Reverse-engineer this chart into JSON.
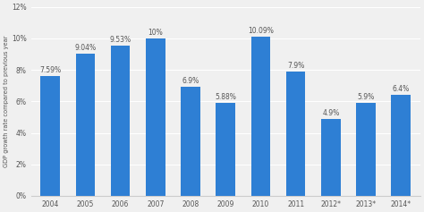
{
  "categories": [
    "2004",
    "2005",
    "2006",
    "2007",
    "2008",
    "2009",
    "2010",
    "2011",
    "2012*",
    "2013*",
    "2014*"
  ],
  "values": [
    7.59,
    9.04,
    9.53,
    10.0,
    6.9,
    5.88,
    10.09,
    7.9,
    4.9,
    5.9,
    6.4
  ],
  "labels": [
    "7.59%",
    "9.04%",
    "9.53%",
    "10%",
    "6.9%",
    "5.88%",
    "10.09%",
    "7.9%",
    "4.9%",
    "5.9%",
    "6.4%"
  ],
  "bar_color": "#2e7fd4",
  "background_color": "#f0f0f0",
  "plot_background": "#f0f0f0",
  "ylabel": "GDP growth rate compared to previous year",
  "ylim": [
    0,
    12
  ],
  "yticks": [
    0,
    2,
    4,
    6,
    8,
    10,
    12
  ],
  "ytick_labels": [
    "0%",
    "2%",
    "4%",
    "6%",
    "8%",
    "10%",
    "12%"
  ],
  "label_fontsize": 5.5,
  "ylabel_fontsize": 4.8,
  "tick_fontsize": 5.5,
  "bar_width": 0.55,
  "grid_color": "#ffffff",
  "spine_color": "#cccccc",
  "text_color": "#555555"
}
